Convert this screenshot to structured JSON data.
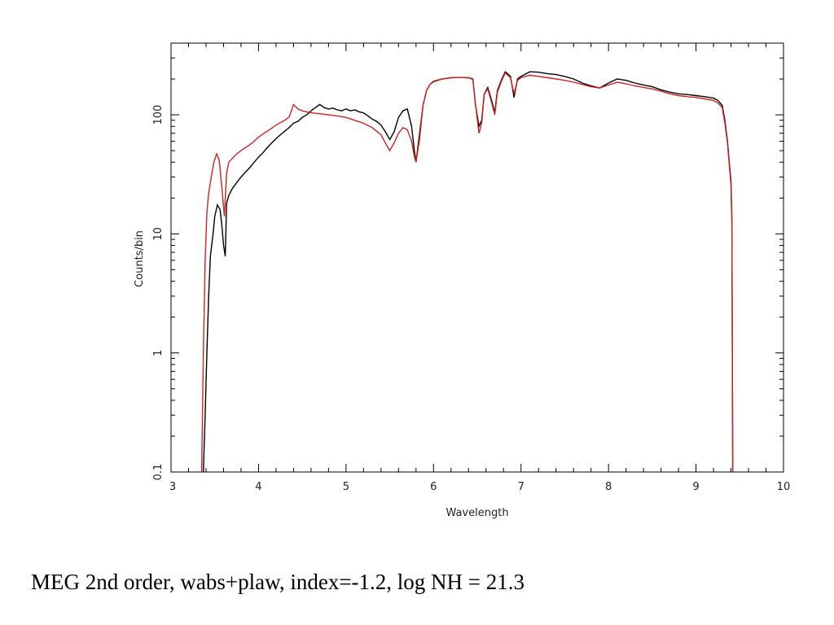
{
  "caption": "MEG 2nd order, wabs+plaw, index=-1.2, log NH = 21.3",
  "chart_data": {
    "type": "line",
    "xlabel": "Wavelength",
    "ylabel": "Counts/bin",
    "xlim": [
      3,
      10
    ],
    "ylim": [
      0.1,
      400
    ],
    "yscale": "log",
    "grid": false,
    "x_ticks": [
      3,
      4,
      5,
      6,
      7,
      8,
      9,
      10
    ],
    "x_tick_labels": [
      "3",
      "4",
      "5",
      "6",
      "7",
      "8",
      "9",
      "10"
    ],
    "y_ticks": [
      0.1,
      1,
      10,
      100
    ],
    "y_tick_labels": [
      "0.1",
      "1",
      "10",
      "100"
    ],
    "series": [
      {
        "color": "#000000",
        "points": [
          [
            3.37,
            0.1
          ],
          [
            3.39,
            0.3
          ],
          [
            3.41,
            1.0
          ],
          [
            3.43,
            3.0
          ],
          [
            3.45,
            6.5
          ],
          [
            3.48,
            10
          ],
          [
            3.5,
            14
          ],
          [
            3.53,
            17.5
          ],
          [
            3.56,
            16
          ],
          [
            3.58,
            12
          ],
          [
            3.6,
            8
          ],
          [
            3.62,
            6.5
          ],
          [
            3.635,
            18
          ],
          [
            3.66,
            21
          ],
          [
            3.7,
            24
          ],
          [
            3.75,
            27
          ],
          [
            3.8,
            30
          ],
          [
            3.85,
            33
          ],
          [
            3.9,
            36
          ],
          [
            3.95,
            40
          ],
          [
            4.0,
            44
          ],
          [
            4.05,
            48
          ],
          [
            4.1,
            53
          ],
          [
            4.15,
            58
          ],
          [
            4.2,
            63
          ],
          [
            4.25,
            68
          ],
          [
            4.3,
            73
          ],
          [
            4.35,
            78
          ],
          [
            4.4,
            85
          ],
          [
            4.45,
            88
          ],
          [
            4.5,
            95
          ],
          [
            4.55,
            100
          ],
          [
            4.6,
            108
          ],
          [
            4.65,
            115
          ],
          [
            4.7,
            122
          ],
          [
            4.75,
            115
          ],
          [
            4.8,
            112
          ],
          [
            4.85,
            114
          ],
          [
            4.9,
            110
          ],
          [
            4.95,
            108
          ],
          [
            5.0,
            112
          ],
          [
            5.05,
            108
          ],
          [
            5.1,
            110
          ],
          [
            5.15,
            106
          ],
          [
            5.2,
            104
          ],
          [
            5.25,
            98
          ],
          [
            5.3,
            92
          ],
          [
            5.35,
            88
          ],
          [
            5.4,
            82
          ],
          [
            5.45,
            72
          ],
          [
            5.5,
            62
          ],
          [
            5.55,
            72
          ],
          [
            5.6,
            95
          ],
          [
            5.65,
            108
          ],
          [
            5.7,
            112
          ],
          [
            5.75,
            80
          ],
          [
            5.78,
            50
          ],
          [
            5.8,
            40
          ],
          [
            5.83,
            60
          ],
          [
            5.88,
            120
          ],
          [
            5.92,
            160
          ],
          [
            5.96,
            180
          ],
          [
            6.0,
            190
          ],
          [
            6.1,
            200
          ],
          [
            6.2,
            205
          ],
          [
            6.3,
            206
          ],
          [
            6.4,
            205
          ],
          [
            6.45,
            200
          ],
          [
            6.48,
            120
          ],
          [
            6.52,
            80
          ],
          [
            6.55,
            90
          ],
          [
            6.58,
            150
          ],
          [
            6.62,
            170
          ],
          [
            6.66,
            135
          ],
          [
            6.7,
            105
          ],
          [
            6.73,
            160
          ],
          [
            6.78,
            200
          ],
          [
            6.82,
            230
          ],
          [
            6.88,
            210
          ],
          [
            6.92,
            140
          ],
          [
            6.96,
            200
          ],
          [
            7.0,
            210
          ],
          [
            7.1,
            230
          ],
          [
            7.2,
            228
          ],
          [
            7.3,
            222
          ],
          [
            7.4,
            218
          ],
          [
            7.5,
            210
          ],
          [
            7.6,
            200
          ],
          [
            7.7,
            185
          ],
          [
            7.8,
            175
          ],
          [
            7.9,
            168
          ],
          [
            8.0,
            185
          ],
          [
            8.1,
            200
          ],
          [
            8.2,
            195
          ],
          [
            8.3,
            185
          ],
          [
            8.4,
            178
          ],
          [
            8.5,
            172
          ],
          [
            8.6,
            162
          ],
          [
            8.7,
            155
          ],
          [
            8.8,
            150
          ],
          [
            8.9,
            148
          ],
          [
            9.0,
            145
          ],
          [
            9.1,
            142
          ],
          [
            9.2,
            138
          ],
          [
            9.25,
            132
          ],
          [
            9.3,
            120
          ],
          [
            9.33,
            90
          ],
          [
            9.36,
            60
          ],
          [
            9.38,
            40
          ],
          [
            9.4,
            28
          ],
          [
            9.41,
            14
          ],
          [
            9.42,
            0.1
          ]
        ]
      },
      {
        "color": "#cc2222",
        "points": [
          [
            3.35,
            0.1
          ],
          [
            3.37,
            1.0
          ],
          [
            3.39,
            6
          ],
          [
            3.41,
            15
          ],
          [
            3.43,
            22
          ],
          [
            3.46,
            30
          ],
          [
            3.49,
            40
          ],
          [
            3.52,
            47
          ],
          [
            3.55,
            42
          ],
          [
            3.58,
            25
          ],
          [
            3.61,
            14
          ],
          [
            3.635,
            32
          ],
          [
            3.66,
            40
          ],
          [
            3.7,
            43
          ],
          [
            3.75,
            47
          ],
          [
            3.8,
            50
          ],
          [
            3.85,
            53
          ],
          [
            3.9,
            56
          ],
          [
            3.95,
            60
          ],
          [
            4.0,
            65
          ],
          [
            4.05,
            69
          ],
          [
            4.1,
            73
          ],
          [
            4.15,
            77
          ],
          [
            4.2,
            82
          ],
          [
            4.25,
            86
          ],
          [
            4.3,
            90
          ],
          [
            4.35,
            96
          ],
          [
            4.4,
            122
          ],
          [
            4.45,
            112
          ],
          [
            4.5,
            108
          ],
          [
            4.55,
            106
          ],
          [
            4.6,
            104
          ],
          [
            4.7,
            102
          ],
          [
            4.8,
            100
          ],
          [
            4.9,
            98
          ],
          [
            5.0,
            95
          ],
          [
            5.1,
            90
          ],
          [
            5.2,
            85
          ],
          [
            5.3,
            78
          ],
          [
            5.4,
            68
          ],
          [
            5.45,
            58
          ],
          [
            5.5,
            50
          ],
          [
            5.55,
            58
          ],
          [
            5.6,
            70
          ],
          [
            5.65,
            78
          ],
          [
            5.7,
            75
          ],
          [
            5.75,
            60
          ],
          [
            5.78,
            45
          ],
          [
            5.8,
            40
          ],
          [
            5.84,
            62
          ],
          [
            5.88,
            120
          ],
          [
            5.92,
            160
          ],
          [
            5.96,
            180
          ],
          [
            6.0,
            192
          ],
          [
            6.1,
            200
          ],
          [
            6.2,
            205
          ],
          [
            6.3,
            206
          ],
          [
            6.4,
            205
          ],
          [
            6.45,
            198
          ],
          [
            6.48,
            120
          ],
          [
            6.52,
            70
          ],
          [
            6.55,
            85
          ],
          [
            6.58,
            150
          ],
          [
            6.62,
            165
          ],
          [
            6.66,
            130
          ],
          [
            6.7,
            100
          ],
          [
            6.73,
            155
          ],
          [
            6.78,
            195
          ],
          [
            6.82,
            225
          ],
          [
            6.88,
            205
          ],
          [
            6.92,
            150
          ],
          [
            6.96,
            195
          ],
          [
            7.0,
            205
          ],
          [
            7.1,
            215
          ],
          [
            7.2,
            210
          ],
          [
            7.3,
            205
          ],
          [
            7.4,
            200
          ],
          [
            7.5,
            195
          ],
          [
            7.6,
            188
          ],
          [
            7.7,
            180
          ],
          [
            7.8,
            172
          ],
          [
            7.9,
            168
          ],
          [
            8.0,
            178
          ],
          [
            8.1,
            188
          ],
          [
            8.2,
            182
          ],
          [
            8.3,
            175
          ],
          [
            8.4,
            170
          ],
          [
            8.5,
            165
          ],
          [
            8.6,
            158
          ],
          [
            8.7,
            150
          ],
          [
            8.8,
            145
          ],
          [
            8.9,
            142
          ],
          [
            9.0,
            140
          ],
          [
            9.1,
            136
          ],
          [
            9.2,
            132
          ],
          [
            9.25,
            126
          ],
          [
            9.3,
            115
          ],
          [
            9.33,
            85
          ],
          [
            9.36,
            58
          ],
          [
            9.38,
            38
          ],
          [
            9.4,
            26
          ],
          [
            9.41,
            12
          ],
          [
            9.42,
            0.1
          ]
        ]
      }
    ]
  }
}
